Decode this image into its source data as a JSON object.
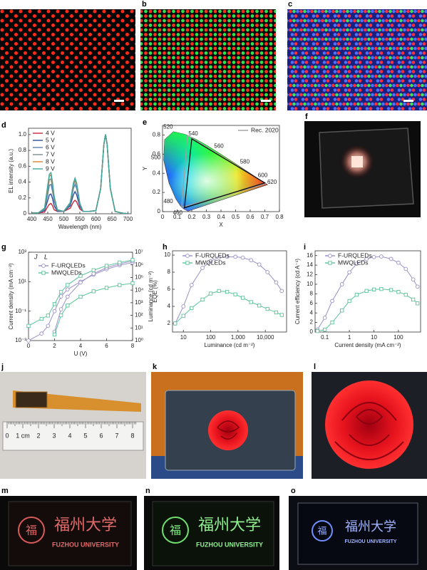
{
  "panel_labels": [
    "b",
    "c",
    "d",
    "e",
    "f",
    "g",
    "h",
    "i",
    "j",
    "k",
    "l",
    "m",
    "n",
    "o"
  ],
  "photos": {
    "ruler_labels": [
      "0",
      "1 cm",
      "2",
      "3",
      "4",
      "5",
      "6",
      "7",
      "8"
    ],
    "logo_char": "福",
    "logo_text": "福州大学",
    "university": "FUZHOU UNIVERSITY"
  },
  "chart_data": [
    {
      "type": "line",
      "xlabel": "Wavelength (nm)",
      "ylabel": "EL intensity (a.u.)",
      "x": [
        400,
        420,
        440,
        450,
        455,
        460,
        465,
        470,
        480,
        500,
        520,
        530,
        535,
        540,
        550,
        560,
        580,
        600,
        615,
        625,
        630,
        635,
        645,
        660,
        680,
        700
      ],
      "xlim": [
        390,
        710
      ],
      "xticks": [
        400,
        450,
        500,
        550,
        600,
        650,
        700
      ],
      "ylim": [
        0,
        1.08
      ],
      "yticks": [
        0,
        0.2,
        0.4,
        0.6,
        0.8,
        {
          "value": 1,
          "label": "1.0"
        }
      ],
      "legend": "upper left",
      "series": [
        {
          "name": "4 V",
          "color": "#c8283c",
          "values": [
            0.01,
            0.01,
            0.02,
            0.09,
            0.12,
            0.13,
            0.1,
            0.05,
            0.03,
            0.03,
            0.07,
            0.15,
            0.17,
            0.15,
            0.06,
            0.03,
            0.03,
            0.04,
            0.32,
            0.88,
            1.0,
            0.88,
            0.32,
            0.03,
            0.01,
            0
          ]
        },
        {
          "name": "5 V",
          "color": "#2b4c9b",
          "values": [
            0.01,
            0.01,
            0.04,
            0.17,
            0.24,
            0.25,
            0.19,
            0.1,
            0.03,
            0.03,
            0.1,
            0.24,
            0.28,
            0.24,
            0.09,
            0.03,
            0.03,
            0.04,
            0.32,
            0.88,
            1.0,
            0.88,
            0.32,
            0.03,
            0.01,
            0
          ]
        },
        {
          "name": "6 V",
          "color": "#5a7fb5",
          "values": [
            0.01,
            0.01,
            0.05,
            0.25,
            0.36,
            0.37,
            0.28,
            0.16,
            0.04,
            0.03,
            0.12,
            0.32,
            0.37,
            0.32,
            0.11,
            0.03,
            0.03,
            0.04,
            0.32,
            0.88,
            1.0,
            0.88,
            0.32,
            0.03,
            0.01,
            0
          ]
        },
        {
          "name": "7 V",
          "color": "#7a8a8a",
          "values": [
            0.01,
            0.01,
            0.06,
            0.3,
            0.43,
            0.44,
            0.33,
            0.18,
            0.04,
            0.03,
            0.14,
            0.36,
            0.42,
            0.36,
            0.13,
            0.03,
            0.03,
            0.04,
            0.32,
            0.88,
            1.0,
            0.88,
            0.32,
            0.03,
            0.01,
            0
          ]
        },
        {
          "name": "8 V",
          "color": "#d9852b",
          "values": [
            0.01,
            0.01,
            0.07,
            0.34,
            0.48,
            0.49,
            0.37,
            0.21,
            0.05,
            0.03,
            0.14,
            0.38,
            0.44,
            0.38,
            0.13,
            0.03,
            0.03,
            0.04,
            0.32,
            0.88,
            1.0,
            0.88,
            0.32,
            0.03,
            0.01,
            0
          ]
        },
        {
          "name": "9 V",
          "color": "#3aa8a0",
          "values": [
            0.01,
            0.01,
            0.07,
            0.36,
            0.5,
            0.52,
            0.39,
            0.22,
            0.05,
            0.03,
            0.14,
            0.39,
            0.45,
            0.39,
            0.13,
            0.03,
            0.03,
            0.04,
            0.32,
            0.88,
            1.0,
            0.88,
            0.32,
            0.03,
            0.01,
            0
          ]
        }
      ]
    },
    {
      "type": "chromaticity",
      "xlabel": "X",
      "ylabel": "Y",
      "xlim": [
        0,
        0.8
      ],
      "xticks": [
        0,
        0.1,
        0.2,
        0.3,
        0.4,
        0.5,
        0.6,
        0.7,
        0.8
      ],
      "ylim": [
        0,
        0.9
      ],
      "yticks": [
        0,
        0.2,
        0.4,
        0.6,
        0.8
      ],
      "locus_x": [
        0.144,
        0.124,
        0.091,
        0.045,
        0.008,
        0.014,
        0.074,
        0.155,
        0.23,
        0.302,
        0.373,
        0.444,
        0.512,
        0.627,
        0.691,
        0.719,
        0.174
      ],
      "locus_y": [
        0.03,
        0.058,
        0.133,
        0.295,
        0.538,
        0.75,
        0.834,
        0.806,
        0.754,
        0.692,
        0.624,
        0.555,
        0.487,
        0.372,
        0.308,
        0.281,
        0.005
      ],
      "locus_labels": [
        460,
        null,
        480,
        null,
        500,
        null,
        520,
        null,
        540,
        null,
        560,
        null,
        580,
        600,
        620,
        null,
        null
      ],
      "legend": "upper right",
      "series": [
        {
          "name": "Rec. 2020",
          "color": "#a0a0a0",
          "x": [
            0.708,
            0.17,
            0.131
          ],
          "values": [
            0.292,
            0.797,
            0.046
          ]
        },
        {
          "color": "#000000",
          "x": [
            0.7,
            0.2,
            0.15
          ],
          "values": [
            0.3,
            0.76,
            0.04
          ]
        }
      ]
    },
    {
      "type": "line",
      "xlabel": "U (V)",
      "ylabel": "Current density (mA cm⁻²)",
      "y2label": "Luminance (cd m⁻²)",
      "annotations": [
        "J",
        "L"
      ],
      "x": [
        0,
        1,
        1.5,
        2,
        2.5,
        3,
        4,
        5,
        6,
        7,
        8
      ],
      "xlim": [
        0,
        8
      ],
      "xticks": [
        0,
        2,
        4,
        6,
        8
      ],
      "ylog": true,
      "ylim": [
        0.001,
        1000
      ],
      "yticks": [
        {
          "value": 0.001,
          "label": "10⁻³"
        },
        {
          "value": 0.1,
          "label": "10⁻¹"
        },
        {
          "value": 10,
          "label": "10¹"
        },
        {
          "value": 1000,
          "label": "10³"
        }
      ],
      "y2log": true,
      "y2lim": [
        1,
        10000000
      ],
      "y2ticks": [
        {
          "value": 1,
          "label": "10⁰"
        },
        {
          "value": 10,
          "label": "10¹"
        },
        {
          "value": 100,
          "label": "10²"
        },
        {
          "value": 1000,
          "label": "10³"
        },
        {
          "value": 10000,
          "label": "10⁴"
        },
        {
          "value": 100000,
          "label": "10⁵"
        },
        {
          "value": 1000000,
          "label": "10⁶"
        },
        {
          "value": 10000000,
          "label": "10⁷"
        }
      ],
      "legend": "upper left",
      "series": [
        {
          "name": "F-URQLEDs",
          "color": "#9b8fc7",
          "marker": "circle",
          "values": [
            0.001,
            0.003,
            0.01,
            0.1,
            1,
            3,
            10,
            30,
            70,
            130,
            200
          ],
          "luminance": [
            null,
            null,
            null,
            5,
            300,
            3000,
            40000,
            200000,
            600000,
            1200000,
            2000000
          ]
        },
        {
          "name": "MWQLEDs",
          "color": "#5cc49a",
          "marker": "square",
          "values": [
            0.01,
            0.03,
            0.05,
            0.3,
            2,
            6,
            25,
            60,
            120,
            200,
            300
          ],
          "luminance": [
            null,
            null,
            null,
            3,
            100,
            600,
            3000,
            8000,
            15000,
            25000,
            35000
          ]
        }
      ]
    },
    {
      "type": "line",
      "xlabel": "Luminance (cd m⁻²)",
      "ylabel": "EQE (%)",
      "xlog": true,
      "xlim": [
        4,
        60000
      ],
      "xticks": [
        10,
        100,
        {
          "value": 1000,
          "label": "1,000"
        },
        {
          "value": 10000,
          "label": "10,000"
        }
      ],
      "ylim": [
        1,
        10.5
      ],
      "yticks": [
        2,
        4,
        6,
        8,
        10
      ],
      "x": [
        5,
        10,
        20,
        50,
        100,
        200,
        400,
        800,
        1500,
        3000,
        6000,
        12000,
        25000,
        40000
      ],
      "legend": "upper left",
      "series": [
        {
          "name": "F-URQLEDs",
          "color": "#9b8fc7",
          "marker": "circle",
          "values": [
            2.0,
            4.0,
            6.5,
            8.5,
            9.3,
            9.7,
            9.8,
            9.8,
            9.7,
            9.4,
            8.9,
            8.0,
            6.8,
            5.8
          ]
        },
        {
          "name": "MWQLEDs",
          "color": "#5cc49a",
          "marker": "square",
          "values": [
            2.0,
            2.9,
            3.8,
            4.8,
            5.5,
            5.8,
            5.7,
            5.4,
            5.0,
            4.5,
            4.1,
            3.7,
            3.3,
            3.0
          ]
        }
      ]
    },
    {
      "type": "line",
      "xlabel": "Current density (mA cm⁻²)",
      "ylabel": "Current efficiency (cd A⁻¹)",
      "xlog": true,
      "xlim": [
        0.04,
        800
      ],
      "xticks": [
        0.1,
        1,
        10,
        100
      ],
      "ylim": [
        0,
        17
      ],
      "yticks": [
        0,
        2,
        4,
        6,
        8,
        10,
        12,
        14,
        16
      ],
      "x": [
        0.05,
        0.1,
        0.2,
        0.5,
        1,
        2,
        5,
        10,
        20,
        50,
        100,
        200,
        400,
        600
      ],
      "legend": "upper left",
      "series": [
        {
          "name": "F-URQLEDs",
          "color": "#9b8fc7",
          "marker": "circle",
          "values": [
            0.5,
            3,
            6.5,
            10,
            12.5,
            14.3,
            15.3,
            15.7,
            15.8,
            15.3,
            14.5,
            13.2,
            11,
            9.5
          ]
        },
        {
          "name": "MWQLEDs",
          "color": "#5cc49a",
          "marker": "square",
          "values": [
            0.2,
            0.5,
            2,
            4.5,
            6.5,
            7.8,
            8.6,
            8.9,
            9,
            8.8,
            8.4,
            7.8,
            6.8,
            6
          ]
        }
      ]
    }
  ]
}
